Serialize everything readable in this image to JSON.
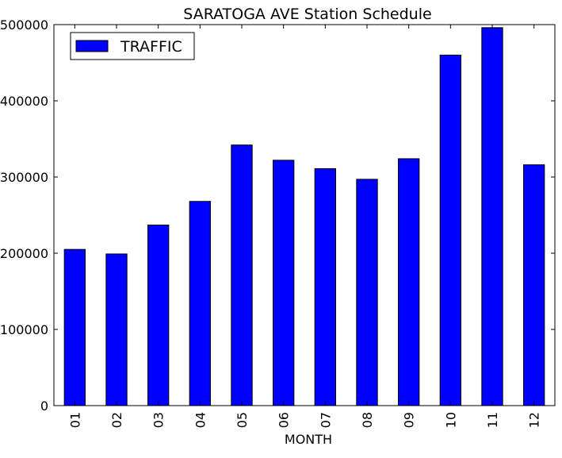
{
  "chart_data": {
    "type": "bar",
    "title": "SARATOGA AVE Station Schedule",
    "xlabel": "MONTH",
    "ylabel": "",
    "categories": [
      "01",
      "02",
      "03",
      "04",
      "05",
      "06",
      "07",
      "08",
      "09",
      "10",
      "11",
      "12"
    ],
    "series": [
      {
        "name": "TRAFFIC",
        "values": [
          205000,
          199000,
          237000,
          268000,
          342000,
          322000,
          311000,
          297000,
          324000,
          460000,
          496000,
          316000
        ],
        "color": "#0000ff"
      }
    ],
    "ylim": [
      0,
      500000
    ],
    "yticks": [
      "0",
      "100000",
      "200000",
      "300000",
      "400000",
      "500000"
    ],
    "grid": false,
    "legend_position": "top-left"
  }
}
